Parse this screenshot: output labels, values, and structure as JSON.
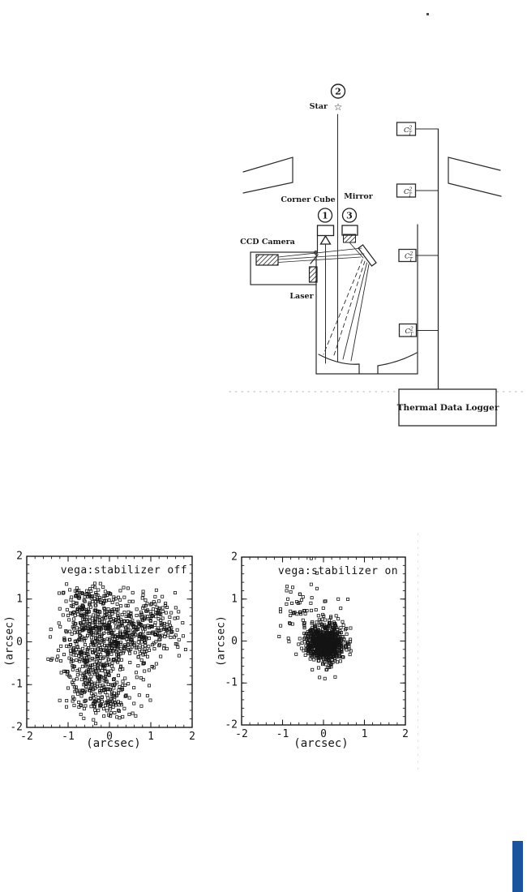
{
  "colors": {
    "ink": "#1a1a1a",
    "accent_blue": "#1b549c",
    "artifact_gray": "#c6c6c6",
    "artifact_faint": "#e2e6e3"
  },
  "diagram": {
    "star_label": "Star",
    "star_glyph": "☆",
    "marker_1": "1",
    "marker_2": "2",
    "marker_3": "3",
    "corner_cube_label": "Corner Cube",
    "mirror_label": "Mirror",
    "ccd_label": "CCD Camera",
    "laser_label": "Laser",
    "logger_label": "Thermal Data Logger",
    "sensor": {
      "base": "C",
      "sup": "2",
      "sub": "T"
    }
  },
  "chart_data": [
    {
      "type": "scatter",
      "title": "vega:stabilizer off",
      "xlabel": "(arcsec)",
      "ylabel": "(arcsec)",
      "xlim": [
        -2,
        2
      ],
      "ylim": [
        -2,
        2
      ],
      "xticks": [
        -2,
        -1,
        0,
        1,
        2
      ],
      "yticks": [
        2,
        1,
        0,
        -1,
        -2
      ],
      "minor_tick_step": 0.2,
      "grid": false,
      "marker": "open-square",
      "seed": 42,
      "clusters": [
        {
          "n": 420,
          "cx": -0.35,
          "cy": 0.15,
          "sx": 0.5,
          "sy": 0.5
        },
        {
          "n": 240,
          "cx": 0.45,
          "cy": 0.15,
          "sx": 0.55,
          "sy": 0.45
        },
        {
          "n": 190,
          "cx": -0.3,
          "cy": -1.0,
          "sx": 0.38,
          "sy": 0.42
        },
        {
          "n": 120,
          "cx": 1.15,
          "cy": 0.45,
          "sx": 0.35,
          "sy": 0.33
        },
        {
          "n": 60,
          "cx": 0.0,
          "cy": -1.45,
          "sx": 0.35,
          "sy": 0.25
        },
        {
          "n": 80,
          "cx": -0.55,
          "cy": 0.9,
          "sx": 0.35,
          "sy": 0.3
        }
      ],
      "extra_points": [],
      "clip": [
        -1.6,
        1.85,
        -1.95,
        1.5
      ]
    },
    {
      "type": "scatter",
      "title": "vega:stabilizer on",
      "xlabel": "(arcsec)",
      "ylabel": "(arcsec)",
      "xlim": [
        -2,
        2
      ],
      "ylim": [
        -2,
        2
      ],
      "xticks": [
        -2,
        -1,
        0,
        1,
        2
      ],
      "yticks": [
        2,
        1,
        0,
        -1,
        -2
      ],
      "minor_tick_step": 0.2,
      "grid": false,
      "marker": "open-square",
      "seed": 7,
      "clusters": [
        {
          "n": 650,
          "cx": 0.05,
          "cy": -0.05,
          "sx": 0.2,
          "sy": 0.2
        },
        {
          "n": 200,
          "cx": 0.0,
          "cy": -0.02,
          "sx": 0.33,
          "sy": 0.3
        },
        {
          "n": 35,
          "cx": -0.45,
          "cy": 0.75,
          "sx": 0.35,
          "sy": 0.35
        }
      ],
      "extra_points": [
        [
          -0.89,
          1.3
        ],
        [
          -0.8,
          1.17
        ],
        [
          -0.87,
          1.0
        ],
        [
          -0.16,
          1.25
        ],
        [
          -0.3,
          1.97
        ],
        [
          0.36,
          1.0
        ],
        [
          -1.05,
          0.7
        ],
        [
          -0.83,
          0.43
        ],
        [
          -0.16,
          1.62
        ],
        [
          -0.62,
          0.9
        ],
        [
          -0.5,
          1.05
        ],
        [
          -0.3,
          1.35
        ],
        [
          0.42,
          0.78
        ],
        [
          0.05,
          0.95
        ]
      ],
      "clip": [
        -1.2,
        1.0,
        -0.9,
        1.55
      ]
    }
  ]
}
